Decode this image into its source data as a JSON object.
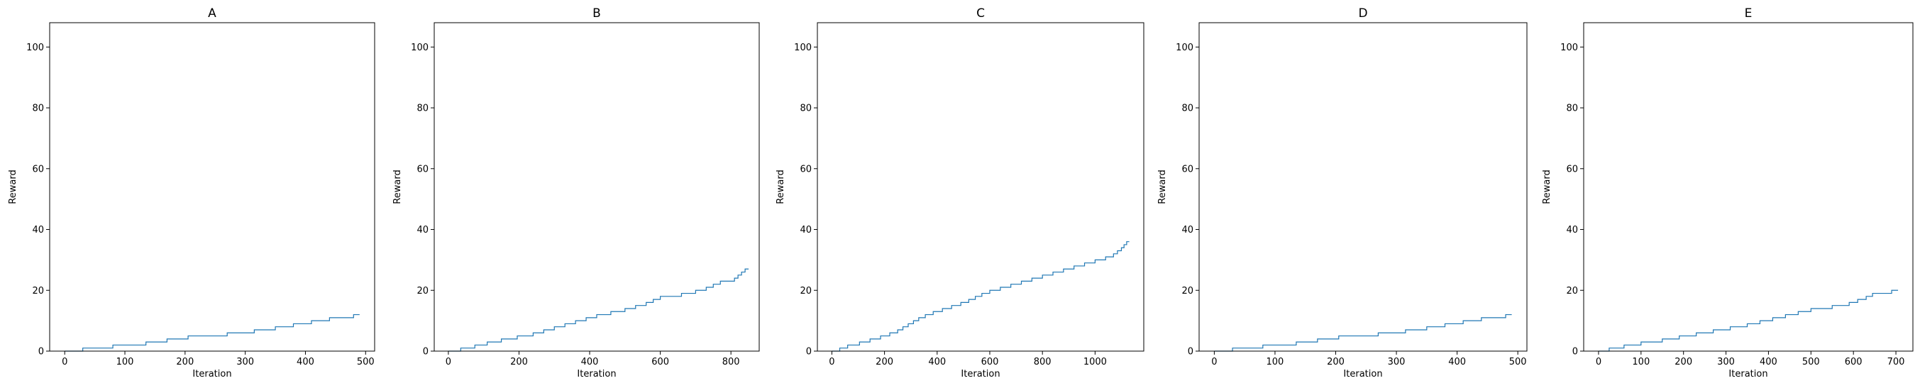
{
  "chart_data": [
    {
      "type": "line",
      "title": "A",
      "xlabel": "Iteration",
      "ylabel": "Reward",
      "xlim": [
        -25,
        515
      ],
      "ylim": [
        0,
        108
      ],
      "xticks": [
        0,
        100,
        200,
        300,
        400,
        500
      ],
      "yticks": [
        0,
        20,
        40,
        60,
        80,
        100
      ],
      "grid": false,
      "series": [
        {
          "x": [
            0,
            30,
            30,
            80,
            80,
            135,
            135,
            170,
            170,
            205,
            205,
            270,
            270,
            315,
            315,
            350,
            350,
            380,
            380,
            410,
            410,
            440,
            440,
            480,
            480,
            490
          ],
          "y": [
            0,
            0,
            1,
            1,
            2,
            2,
            3,
            3,
            4,
            4,
            5,
            5,
            6,
            6,
            7,
            7,
            8,
            8,
            9,
            9,
            10,
            10,
            11,
            11,
            12,
            12
          ]
        }
      ]
    },
    {
      "type": "line",
      "title": "B",
      "xlabel": "Iteration",
      "ylabel": "Reward",
      "xlim": [
        -40,
        880
      ],
      "ylim": [
        0,
        108
      ],
      "xticks": [
        0,
        200,
        400,
        600,
        800
      ],
      "yticks": [
        0,
        20,
        40,
        60,
        80,
        100
      ],
      "grid": false,
      "series": [
        {
          "x": [
            0,
            35,
            35,
            75,
            75,
            110,
            110,
            150,
            150,
            195,
            195,
            240,
            240,
            270,
            270,
            300,
            300,
            330,
            330,
            360,
            360,
            390,
            390,
            420,
            420,
            460,
            460,
            500,
            500,
            530,
            530,
            560,
            560,
            580,
            580,
            600,
            600,
            660,
            660,
            700,
            700,
            730,
            730,
            750,
            750,
            770,
            770,
            810,
            810,
            820,
            820,
            830,
            830,
            840,
            840,
            850
          ],
          "y": [
            0,
            0,
            1,
            1,
            2,
            2,
            3,
            3,
            4,
            4,
            5,
            5,
            6,
            6,
            7,
            7,
            8,
            8,
            9,
            9,
            10,
            10,
            11,
            11,
            12,
            12,
            13,
            13,
            14,
            14,
            15,
            15,
            16,
            16,
            17,
            17,
            18,
            18,
            19,
            19,
            20,
            20,
            21,
            21,
            22,
            22,
            23,
            23,
            24,
            24,
            25,
            25,
            26,
            26,
            27,
            27
          ]
        }
      ]
    },
    {
      "type": "line",
      "title": "C",
      "xlabel": "Iteration",
      "ylabel": "Reward",
      "xlim": [
        -55,
        1185
      ],
      "ylim": [
        0,
        108
      ],
      "xticks": [
        0,
        200,
        400,
        600,
        800,
        1000
      ],
      "yticks": [
        0,
        20,
        40,
        60,
        80,
        100
      ],
      "grid": false,
      "series": [
        {
          "x": [
            0,
            30,
            30,
            60,
            60,
            105,
            105,
            145,
            145,
            185,
            185,
            220,
            220,
            250,
            250,
            270,
            270,
            290,
            290,
            310,
            310,
            330,
            330,
            355,
            355,
            385,
            385,
            420,
            420,
            455,
            455,
            490,
            490,
            520,
            520,
            545,
            545,
            570,
            570,
            600,
            600,
            640,
            640,
            680,
            680,
            720,
            720,
            760,
            760,
            800,
            800,
            840,
            840,
            880,
            880,
            920,
            920,
            960,
            960,
            1000,
            1000,
            1040,
            1040,
            1070,
            1070,
            1085,
            1085,
            1100,
            1100,
            1110,
            1110,
            1120,
            1120,
            1130
          ],
          "y": [
            0,
            0,
            1,
            1,
            2,
            2,
            3,
            3,
            4,
            4,
            5,
            5,
            6,
            6,
            7,
            7,
            8,
            8,
            9,
            9,
            10,
            10,
            11,
            11,
            12,
            12,
            13,
            13,
            14,
            14,
            15,
            15,
            16,
            16,
            17,
            17,
            18,
            18,
            19,
            19,
            20,
            20,
            21,
            21,
            22,
            22,
            23,
            23,
            24,
            24,
            25,
            25,
            26,
            26,
            27,
            27,
            28,
            28,
            29,
            29,
            30,
            30,
            31,
            31,
            32,
            32,
            33,
            33,
            34,
            34,
            35,
            35,
            36,
            36
          ]
        }
      ]
    },
    {
      "type": "line",
      "title": "D",
      "xlabel": "Iteration",
      "ylabel": "Reward",
      "xlim": [
        -25,
        515
      ],
      "ylim": [
        0,
        108
      ],
      "xticks": [
        0,
        100,
        200,
        300,
        400,
        500
      ],
      "yticks": [
        0,
        20,
        40,
        60,
        80,
        100
      ],
      "grid": false,
      "series": [
        {
          "x": [
            0,
            30,
            30,
            80,
            80,
            135,
            135,
            170,
            170,
            205,
            205,
            270,
            270,
            315,
            315,
            350,
            350,
            380,
            380,
            410,
            410,
            440,
            440,
            480,
            480,
            490
          ],
          "y": [
            0,
            0,
            1,
            1,
            2,
            2,
            3,
            3,
            4,
            4,
            5,
            5,
            6,
            6,
            7,
            7,
            8,
            8,
            9,
            9,
            10,
            10,
            11,
            11,
            12,
            12
          ]
        }
      ]
    },
    {
      "type": "line",
      "title": "E",
      "xlabel": "Iteration",
      "ylabel": "Reward",
      "xlim": [
        -35,
        740
      ],
      "ylim": [
        0,
        108
      ],
      "xticks": [
        0,
        100,
        200,
        300,
        400,
        500,
        600,
        700
      ],
      "yticks": [
        0,
        20,
        40,
        60,
        80,
        100
      ],
      "grid": false,
      "series": [
        {
          "x": [
            0,
            25,
            25,
            60,
            60,
            100,
            100,
            150,
            150,
            190,
            190,
            230,
            230,
            270,
            270,
            310,
            310,
            350,
            350,
            380,
            380,
            410,
            410,
            440,
            440,
            470,
            470,
            500,
            500,
            550,
            550,
            590,
            590,
            610,
            610,
            630,
            630,
            645,
            645,
            690,
            690,
            705
          ],
          "y": [
            0,
            0,
            1,
            1,
            2,
            2,
            3,
            3,
            4,
            4,
            5,
            5,
            6,
            6,
            7,
            7,
            8,
            8,
            9,
            9,
            10,
            10,
            11,
            11,
            12,
            12,
            13,
            13,
            14,
            14,
            15,
            15,
            16,
            16,
            17,
            17,
            18,
            18,
            19,
            19,
            20,
            20
          ]
        }
      ]
    }
  ]
}
